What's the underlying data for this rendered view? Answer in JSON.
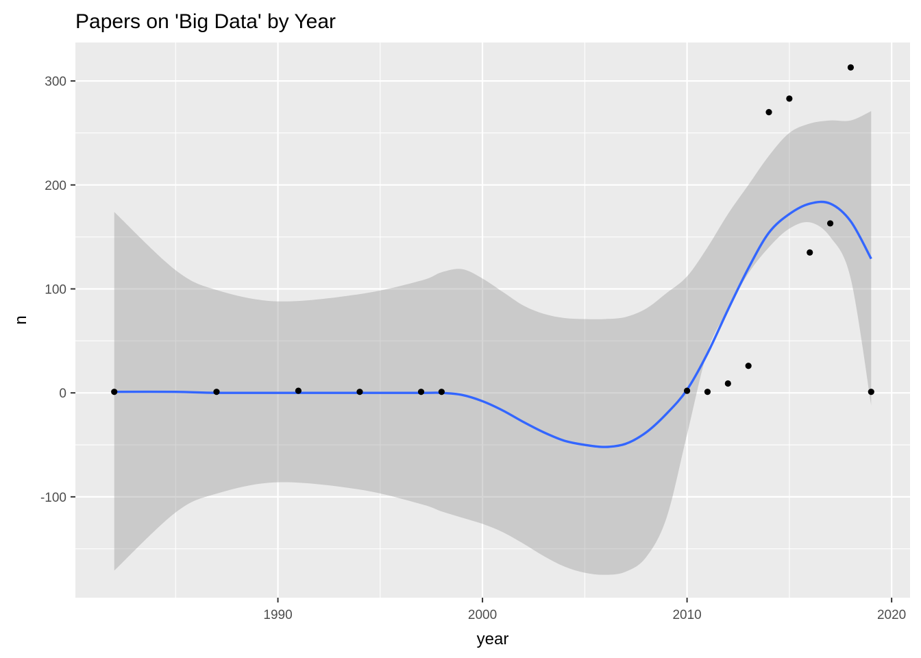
{
  "chart_data": {
    "type": "scatter",
    "title": "Papers on 'Big Data' by Year",
    "xlabel": "year",
    "ylabel": "n",
    "xlim": [
      1980.1,
      2020.9
    ],
    "ylim": [
      -197,
      337
    ],
    "x_ticks": [
      1990,
      2000,
      2010,
      2020
    ],
    "y_ticks": [
      -100,
      0,
      100,
      200,
      300
    ],
    "grid": true,
    "legend": "none",
    "colors": {
      "panel": "#EBEBEB",
      "grid": "#FFFFFF",
      "points": "#000000",
      "smooth_line": "#3366FF",
      "ribbon": "#C2C2C2"
    },
    "series": [
      {
        "kind": "points",
        "x": [
          1982,
          1987,
          1991,
          1994,
          1997,
          1998,
          2010,
          2011,
          2012,
          2013,
          2014,
          2015,
          2016,
          2017,
          2018,
          2019
        ],
        "y": [
          1,
          1,
          2,
          1,
          1,
          1,
          2,
          1,
          9,
          26,
          270,
          283,
          135,
          163,
          313,
          1
        ]
      },
      {
        "kind": "smooth",
        "x": [
          1982,
          1985,
          1987,
          1990,
          1994,
          1997,
          1998,
          1999,
          2000,
          2001,
          2002,
          2003,
          2004,
          2005,
          2006,
          2007,
          2008,
          2009,
          2010,
          2011,
          2012,
          2013,
          2014,
          2015,
          2016,
          2017,
          2018,
          2019
        ],
        "y": [
          1,
          1,
          0,
          0,
          0,
          0,
          0,
          -2,
          -8,
          -17,
          -28,
          -38,
          -46,
          -50,
          -52,
          -49,
          -38,
          -20,
          3,
          38,
          80,
          120,
          154,
          172,
          182,
          182,
          165,
          129
        ],
        "ci_lower": [
          -171,
          -115,
          -97,
          -86,
          -93,
          -107,
          -114,
          -120,
          -126,
          -134,
          -145,
          -157,
          -167,
          -173,
          -175,
          -172,
          -158,
          -120,
          -40,
          40,
          80,
          115,
          140,
          158,
          164,
          150,
          110,
          -12
        ],
        "ci_upper": [
          174,
          118,
          99,
          88,
          95,
          108,
          116,
          119,
          110,
          97,
          84,
          76,
          72,
          71,
          71,
          73,
          81,
          96,
          112,
          140,
          172,
          200,
          228,
          250,
          259,
          262,
          262,
          271
        ]
      }
    ]
  }
}
